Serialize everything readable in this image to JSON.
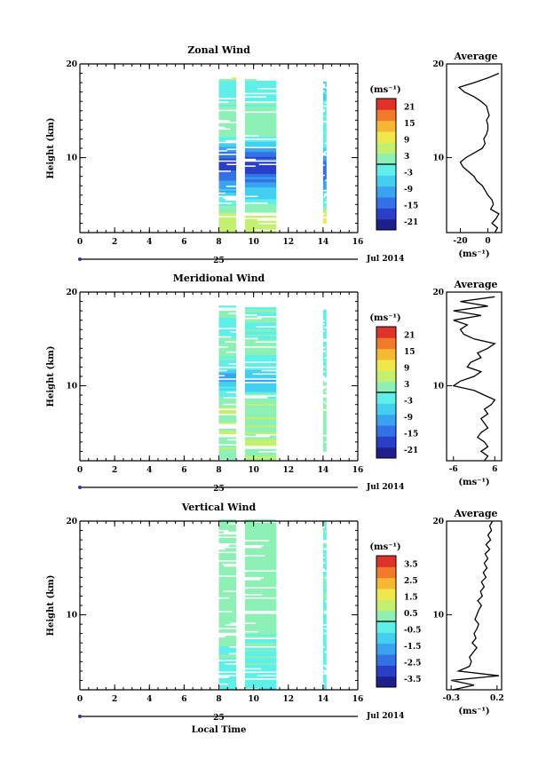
{
  "colors": {
    "axis": "#000000",
    "colormap": [
      "#1e1e8c",
      "#2a3fc8",
      "#3372e6",
      "#3aa3f0",
      "#43d0f0",
      "#5ef0e8",
      "#8df0b4",
      "#c4f070",
      "#f0e84a",
      "#f6b832",
      "#f07a2a",
      "#e0322a"
    ]
  },
  "chart_data": [
    {
      "type": "heatmap",
      "title": "Zonal Wind",
      "ylabel": "Height (km)",
      "xlim": [
        0,
        16
      ],
      "ylim": [
        2,
        20
      ],
      "xticks": [
        "0",
        "2",
        "4",
        "6",
        "8",
        "10",
        "12",
        "14",
        "16"
      ],
      "yticks": [
        "10",
        "20"
      ],
      "date_axis": {
        "day": "25",
        "month_year": "Jul 2014"
      },
      "colorbar": {
        "unit": "(ms⁻¹)",
        "ticks": [
          "21",
          "15",
          "9",
          "3",
          "-3",
          "-9",
          "-15",
          "-21"
        ],
        "range": [
          -24,
          24
        ]
      },
      "data_blocks": [
        {
          "x": [
            8.0,
            9.0
          ],
          "y": [
            2.0,
            18.5
          ],
          "profile": [
            [
              2,
              6
            ],
            [
              4,
              4
            ],
            [
              6,
              -6
            ],
            [
              8,
              -14
            ],
            [
              9.5,
              -19
            ],
            [
              11,
              -8
            ],
            [
              12.5,
              3
            ],
            [
              14,
              2
            ],
            [
              16,
              0
            ],
            [
              18,
              -3
            ],
            [
              18.5,
              12
            ]
          ]
        },
        {
          "x": [
            9.5,
            11.3
          ],
          "y": [
            2.0,
            18.3
          ],
          "profile": [
            [
              2,
              6
            ],
            [
              4,
              4
            ],
            [
              6,
              -6
            ],
            [
              8,
              -14
            ],
            [
              9.5,
              -19
            ],
            [
              11,
              -8
            ],
            [
              12.5,
              3
            ],
            [
              14,
              2
            ],
            [
              16,
              0
            ],
            [
              18,
              -3
            ],
            [
              18.3,
              6
            ]
          ]
        },
        {
          "x": [
            14.0,
            14.2
          ],
          "y": [
            3.0,
            18.0
          ],
          "profile": [
            [
              3,
              12
            ],
            [
              5,
              0
            ],
            [
              7,
              -12
            ],
            [
              9,
              -15
            ],
            [
              12,
              0
            ],
            [
              14,
              0
            ],
            [
              18,
              -6
            ]
          ]
        }
      ],
      "average": {
        "title": "Average",
        "xticks": [
          "-20",
          "0"
        ],
        "xlim": [
          -30,
          10
        ],
        "unit": "(ms⁻¹)",
        "height": [
          2,
          2.5,
          3,
          3.5,
          4,
          4.5,
          5,
          5.5,
          6,
          6.5,
          7,
          7.5,
          8,
          8.5,
          9,
          9.5,
          10,
          10.5,
          11,
          11.5,
          12,
          12.5,
          13,
          13.5,
          14,
          14.5,
          15,
          15.5,
          16,
          16.5,
          17,
          17.5,
          18,
          18.5,
          19
        ],
        "value": [
          5,
          7,
          3,
          6,
          8,
          2,
          4,
          3,
          0,
          -2,
          -4,
          -8,
          -10,
          -14,
          -18,
          -20,
          -16,
          -10,
          -4,
          -2,
          -3,
          -1,
          0,
          0,
          -1,
          1,
          0,
          -1,
          -5,
          -10,
          -17,
          -21,
          -10,
          0,
          8
        ]
      }
    },
    {
      "type": "heatmap",
      "title": "Meridional Wind",
      "ylabel": "Height (km)",
      "xlim": [
        0,
        16
      ],
      "ylim": [
        2,
        20
      ],
      "xticks": [
        "0",
        "2",
        "4",
        "6",
        "8",
        "10",
        "12",
        "14",
        "16"
      ],
      "yticks": [
        "10",
        "20"
      ],
      "date_axis": {
        "day": "25",
        "month_year": "Jul 2014"
      },
      "colorbar": {
        "unit": "(ms⁻¹)",
        "ticks": [
          "21",
          "15",
          "9",
          "3",
          "-3",
          "-9",
          "-15",
          "-21"
        ],
        "range": [
          -24,
          24
        ]
      },
      "data_blocks": [
        {
          "x": [
            8.0,
            9.0
          ],
          "y": [
            2.0,
            18.5
          ],
          "profile": [
            [
              2,
              3
            ],
            [
              4,
              4
            ],
            [
              6,
              3
            ],
            [
              8,
              4
            ],
            [
              10,
              -6
            ],
            [
              11,
              -10
            ],
            [
              12,
              -2
            ],
            [
              13,
              0
            ],
            [
              14,
              2
            ],
            [
              16,
              -1
            ],
            [
              18,
              0
            ]
          ]
        },
        {
          "x": [
            9.5,
            11.3
          ],
          "y": [
            2.0,
            18.5
          ],
          "profile": [
            [
              2,
              3
            ],
            [
              4,
              4
            ],
            [
              6,
              3
            ],
            [
              8,
              4
            ],
            [
              10,
              -6
            ],
            [
              11,
              -8
            ],
            [
              12,
              -2
            ],
            [
              13,
              0
            ],
            [
              14,
              2
            ],
            [
              16,
              -1
            ],
            [
              18,
              0
            ]
          ]
        },
        {
          "x": [
            14.0,
            14.2
          ],
          "y": [
            3.0,
            18.0
          ],
          "profile": [
            [
              3,
              2
            ],
            [
              8,
              3
            ],
            [
              12,
              0
            ],
            [
              18,
              -2
            ]
          ]
        }
      ],
      "average": {
        "title": "Average",
        "xticks": [
          "-6",
          "6"
        ],
        "xlim": [
          -8,
          8
        ],
        "unit": "(ms⁻¹)",
        "height": [
          2,
          2.5,
          3,
          3.5,
          4,
          4.5,
          5,
          5.5,
          6,
          6.5,
          7,
          7.5,
          8,
          8.5,
          9,
          9.5,
          10,
          10.5,
          11,
          11.5,
          12,
          12.5,
          13,
          13.5,
          14,
          14.5,
          15,
          15.5,
          16,
          16.5,
          17,
          17.5,
          18,
          18.5,
          19,
          19.5
        ],
        "value": [
          3,
          4,
          2,
          4,
          3,
          1,
          2,
          4,
          3,
          2,
          4,
          3,
          5,
          6,
          3,
          0,
          -6,
          -4,
          0,
          2,
          -2,
          -1,
          2,
          1,
          4,
          6,
          0,
          -3,
          -4,
          -2,
          -6,
          2,
          -6,
          4,
          -4,
          6
        ]
      }
    },
    {
      "type": "heatmap",
      "title": "Vertical Wind",
      "xlabel": "Local Time",
      "ylabel": "Height (km)",
      "xlim": [
        0,
        16
      ],
      "ylim": [
        2,
        20
      ],
      "xticks": [
        "0",
        "2",
        "4",
        "6",
        "8",
        "10",
        "12",
        "14",
        "16"
      ],
      "yticks": [
        "10",
        "20"
      ],
      "date_axis": {
        "day": "25",
        "month_year": "Jul 2014"
      },
      "colorbar": {
        "unit": "(ms⁻¹)",
        "ticks": [
          "3.5",
          "2.5",
          "1.5",
          "0.5",
          "-0.5",
          "-1.5",
          "-2.5",
          "-3.5"
        ],
        "range": [
          -4,
          4
        ]
      },
      "data_blocks": [
        {
          "x": [
            8.0,
            9.0
          ],
          "y": [
            2.0,
            20.0
          ],
          "profile": [
            [
              2,
              -0.5
            ],
            [
              6,
              0
            ],
            [
              10,
              0.4
            ],
            [
              14,
              0.2
            ],
            [
              20,
              0.3
            ]
          ]
        },
        {
          "x": [
            9.5,
            11.3
          ],
          "y": [
            2.0,
            20.0
          ],
          "profile": [
            [
              2,
              -0.5
            ],
            [
              6,
              0
            ],
            [
              10,
              0.4
            ],
            [
              14,
              0.2
            ],
            [
              20,
              0.3
            ]
          ]
        },
        {
          "x": [
            14.0,
            14.2
          ],
          "y": [
            2.0,
            20.0
          ],
          "profile": [
            [
              2,
              -0.4
            ],
            [
              10,
              -0.2
            ],
            [
              20,
              0.0
            ]
          ]
        }
      ],
      "average": {
        "title": "Average",
        "xticks": [
          "-0.3",
          "0.2"
        ],
        "xlim": [
          -0.35,
          0.25
        ],
        "unit": "(ms⁻¹)",
        "height": [
          2,
          2.5,
          3,
          3.5,
          4,
          4.5,
          5,
          5.5,
          6,
          6.5,
          7,
          7.5,
          8,
          8.5,
          9,
          9.5,
          10,
          10.5,
          11,
          11.5,
          12,
          12.5,
          13,
          13.5,
          14,
          14.5,
          15,
          15.5,
          16,
          16.5,
          17,
          17.5,
          18,
          18.5,
          19,
          19.5,
          20
        ],
        "value": [
          -0.28,
          -0.05,
          -0.3,
          0.22,
          -0.22,
          -0.1,
          -0.08,
          -0.1,
          -0.06,
          -0.02,
          -0.07,
          -0.03,
          -0.05,
          -0.02,
          0.0,
          -0.04,
          -0.02,
          0.0,
          0.03,
          -0.01,
          0.04,
          0.02,
          0.06,
          0.03,
          0.08,
          0.05,
          0.09,
          0.06,
          0.1,
          0.07,
          0.12,
          0.08,
          0.13,
          0.1,
          0.14,
          0.12,
          0.15
        ]
      }
    }
  ]
}
